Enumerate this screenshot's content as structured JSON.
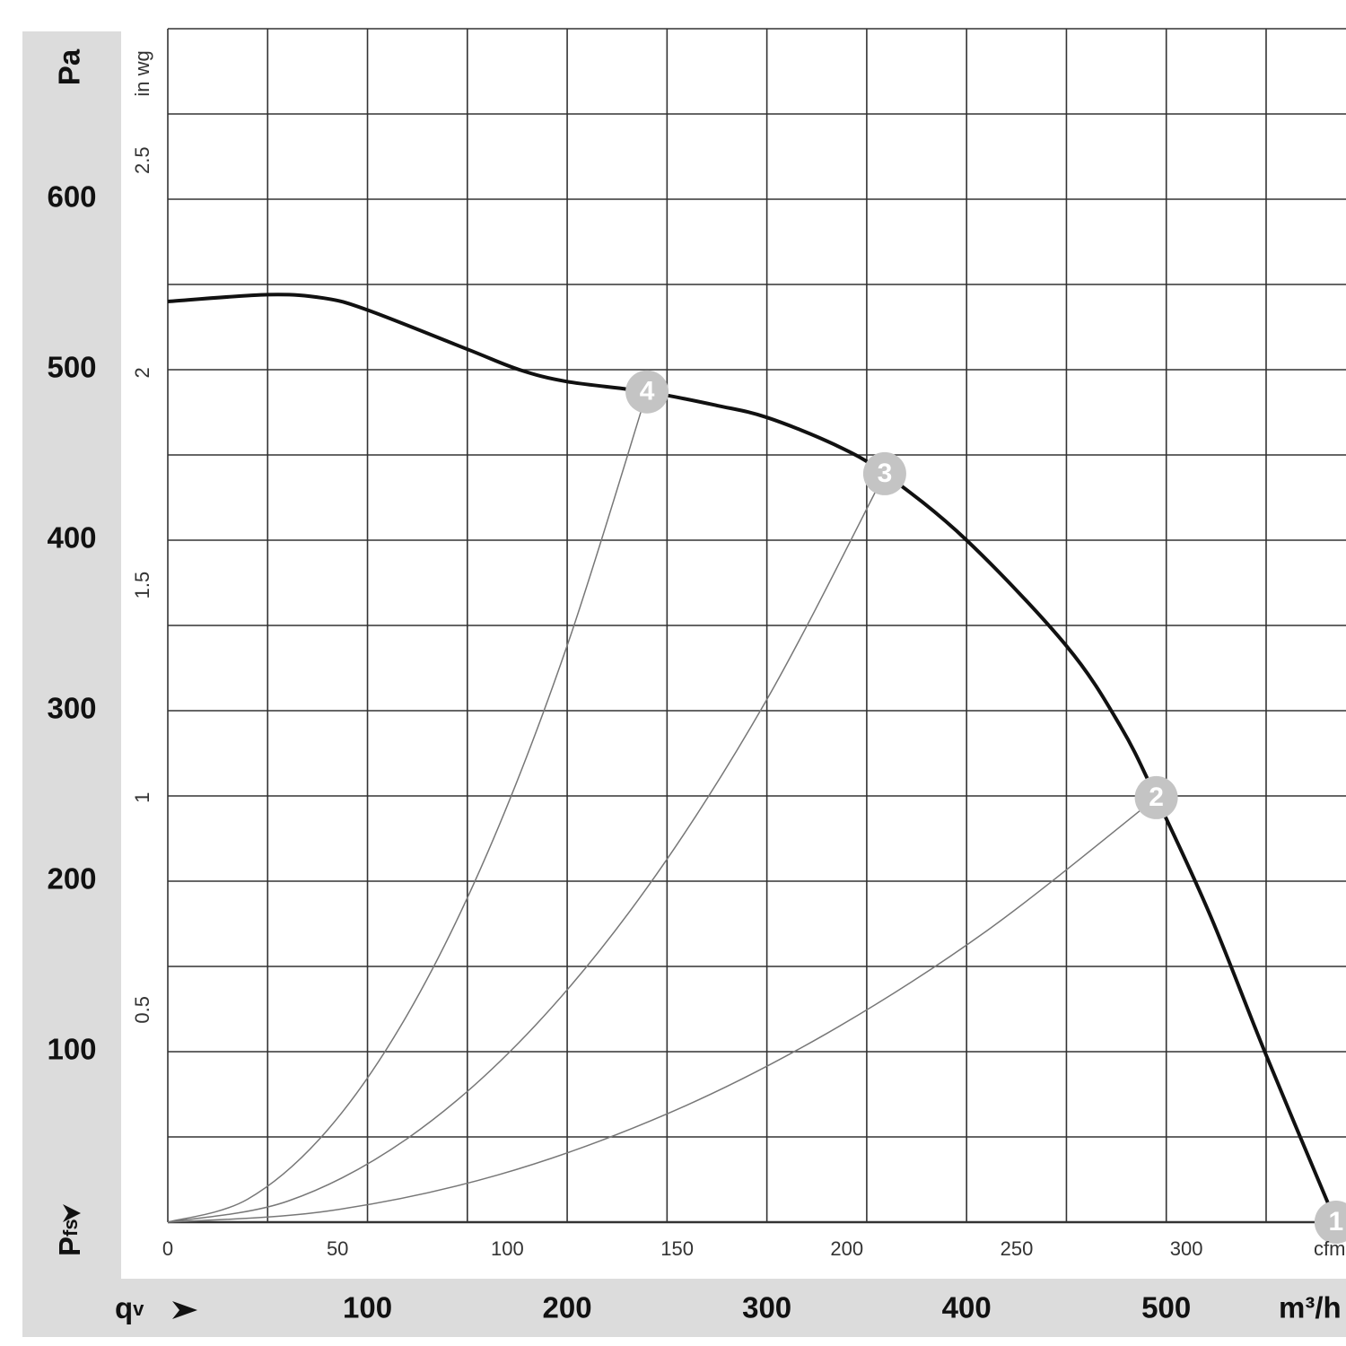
{
  "chart_data": {
    "type": "line",
    "y_title": "Pa",
    "y2_title": "in wg",
    "y_axis_symbol": {
      "main": "P",
      "sub": "fs"
    },
    "x_axis_symbol": {
      "main": "q",
      "sub": "v"
    },
    "x_unit": "m³/h",
    "x2_unit": "cfm",
    "xlim": [
      0,
      590
    ],
    "ylim": [
      0,
      700
    ],
    "x2lim": [
      0,
      347
    ],
    "y2lim": [
      0,
      2.81
    ],
    "xticks": [
      100,
      200,
      300,
      400,
      500
    ],
    "yticks": [
      100,
      200,
      300,
      400,
      500,
      600
    ],
    "x2ticks": [
      0,
      50,
      100,
      150,
      200,
      250,
      300
    ],
    "y2ticks": [
      0.5,
      1,
      1.5,
      2,
      2.5
    ],
    "x_grid": [
      0,
      50,
      100,
      150,
      200,
      250,
      300,
      350,
      400,
      450,
      500,
      550
    ],
    "y_grid": [
      0,
      50,
      100,
      150,
      200,
      250,
      300,
      350,
      400,
      450,
      500,
      550,
      600,
      650,
      700
    ],
    "series": [
      {
        "color": "#111111",
        "x": [
          0,
          50,
          78,
          100,
          150,
          176,
          200,
          240,
          275,
          300,
          334,
          359,
          400,
          450,
          477,
          495,
          522,
          550,
          585
        ],
        "values": [
          540,
          544,
          542,
          535,
          512,
          500,
          493,
          487,
          479,
          472,
          456,
          439,
          400,
          338,
          291,
          249,
          180,
          98,
          0
        ]
      },
      {
        "color": "#777777",
        "x": [
          0,
          40,
          80,
          120,
          160,
          200,
          240
        ],
        "values": [
          0,
          13.5,
          54.1,
          121.8,
          216.4,
          338.2,
          487
        ]
      },
      {
        "color": "#777777",
        "x": [
          0,
          60,
          120,
          180,
          240,
          300,
          359
        ],
        "values": [
          0,
          12.3,
          49.1,
          110.4,
          196.2,
          306.6,
          439
        ]
      },
      {
        "color": "#777777",
        "x": [
          0,
          80,
          165,
          250,
          330,
          410,
          495
        ],
        "values": [
          0,
          6.5,
          27.6,
          63.5,
          110.7,
          170.8,
          249
        ]
      }
    ],
    "points": [
      {
        "label": "4",
        "x": 240,
        "y": 487
      },
      {
        "label": "3",
        "x": 359,
        "y": 439
      },
      {
        "label": "2",
        "x": 495,
        "y": 249
      },
      {
        "label": "1",
        "x": 585,
        "y": 0
      }
    ]
  }
}
